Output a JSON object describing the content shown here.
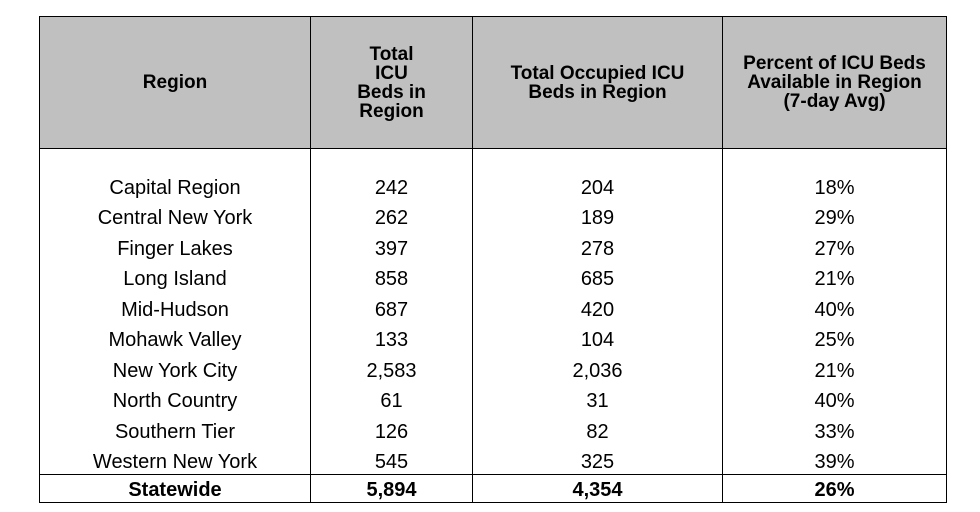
{
  "table": {
    "headers": [
      "Region",
      "Total ICU Beds in Region",
      "Total Occupied ICU Beds in Region",
      "Percent of ICU Beds Available in Region (7-day Avg)"
    ],
    "rows": [
      [
        "Capital Region",
        "242",
        "204",
        "18%"
      ],
      [
        "Central New York",
        "262",
        "189",
        "29%"
      ],
      [
        "Finger Lakes",
        "397",
        "278",
        "27%"
      ],
      [
        "Long Island",
        "858",
        "685",
        "21%"
      ],
      [
        "Mid-Hudson",
        "687",
        "420",
        "40%"
      ],
      [
        "Mohawk Valley",
        "133",
        "104",
        "25%"
      ],
      [
        "New York City",
        "2,583",
        "2,036",
        "21%"
      ],
      [
        "North Country",
        "61",
        "31",
        "40%"
      ],
      [
        "Southern Tier",
        "126",
        "82",
        "33%"
      ],
      [
        "Western New York",
        "545",
        "325",
        "39%"
      ]
    ],
    "total": [
      "Statewide",
      "5,894",
      "4,354",
      "26%"
    ]
  }
}
